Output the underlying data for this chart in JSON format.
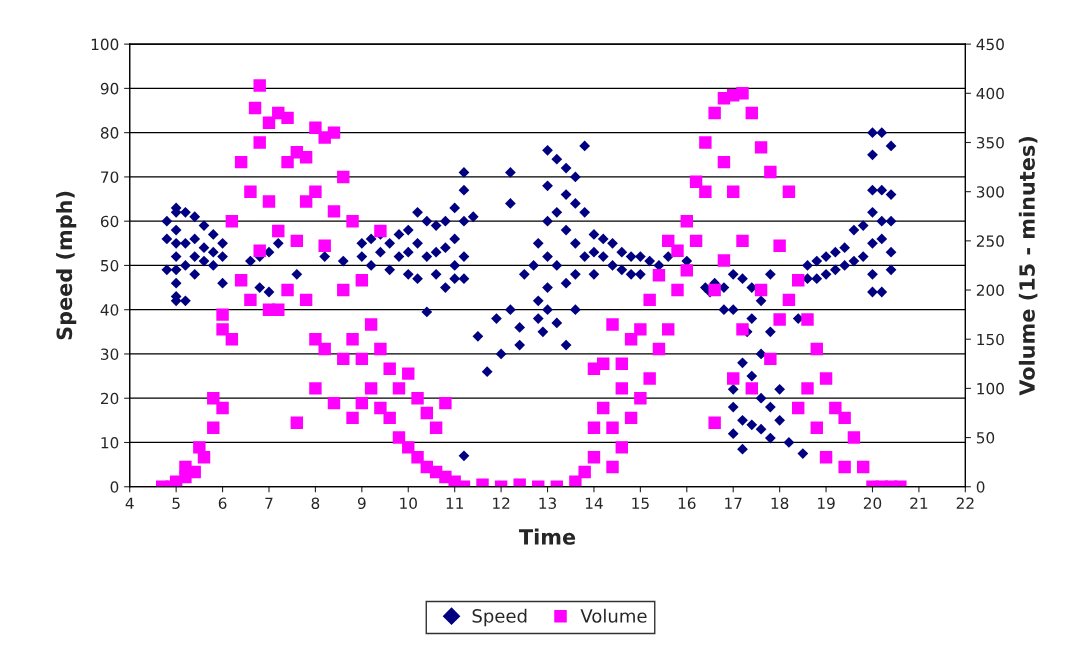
{
  "chart_data": {
    "type": "scatter",
    "xlabel": "Time",
    "ylabel": "Speed (mph)",
    "y2label": "Volume (15 - minutes)",
    "xlim": [
      4,
      22
    ],
    "xticks": [
      4,
      5,
      6,
      7,
      8,
      9,
      10,
      11,
      12,
      13,
      14,
      15,
      16,
      17,
      18,
      19,
      20,
      21,
      22
    ],
    "ylim": [
      0,
      100
    ],
    "yticks": [
      0,
      10,
      20,
      30,
      40,
      50,
      60,
      70,
      80,
      90,
      100
    ],
    "y2lim": [
      0,
      450
    ],
    "y2ticks": [
      0,
      50,
      100,
      150,
      200,
      250,
      300,
      350,
      400,
      450
    ],
    "grid": "y",
    "legend": "bottom",
    "series": [
      {
        "name": "Speed",
        "color": "#000080",
        "marker": "diamond",
        "x": [
          4.8,
          4.8,
          4.8,
          5.0,
          5.0,
          5.0,
          5.0,
          5.0,
          5.0,
          5.0,
          5.0,
          5.0,
          5.2,
          5.2,
          5.2,
          5.2,
          5.4,
          5.4,
          5.4,
          5.4,
          5.6,
          5.6,
          5.6,
          5.8,
          5.8,
          5.8,
          6.0,
          6.0,
          6.0,
          6.6,
          6.8,
          6.8,
          7.0,
          7.0,
          7.2,
          7.6,
          8.2,
          8.6,
          9.0,
          9.0,
          9.2,
          9.2,
          9.4,
          9.4,
          9.6,
          9.6,
          9.8,
          9.8,
          10.0,
          10.0,
          10.0,
          10.2,
          10.2,
          10.2,
          10.4,
          10.4,
          10.4,
          10.6,
          10.6,
          10.6,
          10.8,
          10.8,
          10.8,
          11.0,
          11.0,
          11.0,
          11.0,
          11.2,
          11.2,
          11.2,
          11.2,
          11.2,
          11.2,
          11.4,
          11.5,
          11.7,
          11.9,
          12.0,
          12.2,
          12.2,
          12.2,
          12.4,
          12.4,
          12.5,
          12.7,
          12.8,
          12.8,
          12.8,
          12.9,
          13.0,
          13.0,
          13.0,
          13.0,
          13.0,
          13.0,
          13.2,
          13.2,
          13.2,
          13.2,
          13.4,
          13.4,
          13.4,
          13.4,
          13.4,
          13.6,
          13.6,
          13.6,
          13.6,
          13.6,
          13.8,
          13.8,
          13.8,
          14.0,
          14.0,
          14.0,
          14.2,
          14.2,
          14.4,
          14.4,
          14.6,
          14.6,
          14.8,
          14.8,
          15.0,
          15.0,
          15.2,
          15.4,
          15.6,
          16.0,
          16.4,
          16.6,
          16.5,
          16.8,
          16.8,
          17.0,
          17.0,
          17.0,
          17.0,
          17.0,
          17.2,
          17.3,
          17.2,
          17.2,
          17.2,
          17.4,
          17.4,
          17.4,
          17.4,
          17.6,
          17.6,
          17.6,
          17.6,
          17.8,
          17.8,
          17.8,
          17.8,
          18.0,
          18.0,
          18.2,
          18.4,
          18.5,
          18.6,
          18.6,
          18.8,
          18.8,
          19.0,
          19.0,
          19.2,
          19.2,
          19.4,
          19.4,
          19.6,
          19.6,
          19.8,
          19.8,
          20.0,
          20.0,
          20.0,
          20.0,
          20.0,
          20.0,
          20.0,
          20.2,
          20.2,
          20.2,
          20.2,
          20.2,
          20.4,
          20.4,
          20.4,
          20.4,
          20.4
        ],
        "values": [
          60,
          56,
          49,
          63,
          62,
          58,
          55,
          52,
          49,
          46,
          43,
          42,
          62,
          55,
          50,
          42,
          61,
          56,
          52,
          48,
          59,
          54,
          51,
          57,
          53,
          50,
          55,
          52,
          46,
          51,
          52,
          45,
          53,
          44,
          55,
          48,
          52,
          51,
          55,
          52,
          56,
          50,
          57,
          53,
          55,
          49,
          57,
          52,
          58,
          53,
          48,
          62,
          55,
          47,
          60,
          52,
          39.5,
          59,
          53,
          48,
          60,
          54,
          45,
          63,
          56,
          50,
          47,
          71,
          67,
          60,
          52,
          47,
          7,
          61,
          34,
          26,
          38,
          30,
          71,
          64,
          40,
          36,
          32,
          48,
          50,
          55,
          42,
          38,
          35,
          76,
          68,
          60,
          52,
          45,
          40,
          74,
          62,
          50,
          37,
          72,
          66,
          58,
          46,
          32,
          70,
          64,
          55,
          48,
          40,
          77,
          62,
          52,
          57,
          53,
          48,
          56,
          52,
          55,
          50,
          53,
          49,
          52,
          48,
          52,
          48,
          51,
          50,
          52,
          51,
          45,
          46,
          44,
          45,
          40,
          48,
          40,
          22,
          18,
          12,
          47,
          35,
          28,
          15,
          8.5,
          45,
          38,
          25,
          14,
          42,
          30,
          20,
          13,
          48,
          35,
          18,
          11,
          22,
          15,
          10,
          38,
          7.5,
          50,
          47,
          51,
          47,
          52,
          48,
          53,
          49,
          54,
          50,
          58,
          51,
          59,
          52,
          67,
          62,
          55,
          48,
          44,
          80,
          75,
          67,
          60,
          56,
          44,
          80,
          66,
          60,
          53,
          49,
          77
        ]
      },
      {
        "name": "Volume",
        "color": "#ff00ff",
        "marker": "square",
        "axis": "y2",
        "x": [
          4.7,
          4.9,
          5.0,
          5.2,
          5.2,
          5.4,
          5.5,
          5.6,
          5.8,
          5.8,
          6.0,
          6.0,
          6.0,
          6.2,
          6.2,
          6.4,
          6.4,
          6.6,
          6.6,
          6.7,
          6.8,
          6.8,
          6.8,
          7.0,
          7.0,
          7.0,
          7.2,
          7.2,
          7.2,
          7.4,
          7.4,
          7.4,
          7.6,
          7.6,
          7.6,
          7.8,
          7.8,
          7.8,
          8.0,
          8.0,
          8.0,
          8.0,
          8.2,
          8.2,
          8.2,
          8.4,
          8.4,
          8.4,
          8.6,
          8.6,
          8.6,
          8.8,
          8.8,
          8.8,
          9.0,
          9.0,
          9.0,
          9.2,
          9.2,
          9.4,
          9.4,
          9.4,
          9.6,
          9.6,
          9.8,
          9.8,
          10.0,
          10.0,
          10.2,
          10.2,
          10.4,
          10.4,
          10.6,
          10.6,
          10.8,
          10.8,
          11.0,
          11.2,
          11.6,
          12.0,
          12.4,
          12.8,
          13.2,
          13.6,
          13.8,
          14.0,
          14.0,
          14.0,
          14.2,
          14.2,
          14.4,
          14.4,
          14.4,
          14.6,
          14.6,
          14.6,
          14.8,
          14.8,
          15.0,
          15.0,
          15.2,
          15.2,
          15.4,
          15.4,
          15.6,
          15.6,
          15.8,
          15.8,
          16.0,
          16.0,
          16.2,
          16.2,
          16.4,
          16.4,
          16.6,
          16.6,
          16.6,
          16.8,
          16.8,
          16.8,
          17.0,
          17.0,
          17.0,
          17.2,
          17.2,
          17.2,
          17.4,
          17.4,
          17.6,
          17.6,
          17.8,
          17.8,
          18.0,
          18.0,
          18.2,
          18.2,
          18.4,
          18.4,
          18.6,
          18.6,
          18.8,
          18.8,
          19.0,
          19.0,
          19.2,
          19.4,
          19.4,
          19.6,
          19.8,
          20.0,
          20.2,
          20.4,
          20.6
        ],
        "values": [
          0,
          0,
          5,
          10,
          20,
          15,
          40,
          30,
          60,
          90,
          80,
          160,
          175,
          150,
          270,
          210,
          330,
          190,
          300,
          385,
          408,
          350,
          240,
          180,
          370,
          290,
          380,
          260,
          180,
          375,
          330,
          200,
          340,
          65,
          250,
          335,
          290,
          190,
          365,
          300,
          100,
          150,
          355,
          245,
          140,
          360,
          280,
          85,
          315,
          200,
          130,
          270,
          150,
          70,
          210,
          130,
          85,
          165,
          100,
          260,
          140,
          80,
          120,
          70,
          100,
          50,
          115,
          40,
          90,
          30,
          75,
          20,
          60,
          15,
          85,
          10,
          5,
          0,
          2,
          0,
          2,
          0,
          0,
          5,
          15,
          30,
          60,
          120,
          80,
          125,
          20,
          60,
          165,
          40,
          100,
          125,
          70,
          150,
          90,
          160,
          110,
          190,
          140,
          215,
          160,
          250,
          200,
          240,
          220,
          270,
          250,
          310,
          300,
          350,
          65,
          200,
          380,
          395,
          330,
          230,
          398,
          300,
          110,
          400,
          160,
          250,
          380,
          100,
          345,
          200,
          320,
          130,
          245,
          170,
          300,
          190,
          210,
          80,
          170,
          100,
          140,
          60,
          110,
          30,
          80,
          70,
          20,
          50,
          20,
          0,
          0,
          0,
          0
        ]
      }
    ]
  }
}
